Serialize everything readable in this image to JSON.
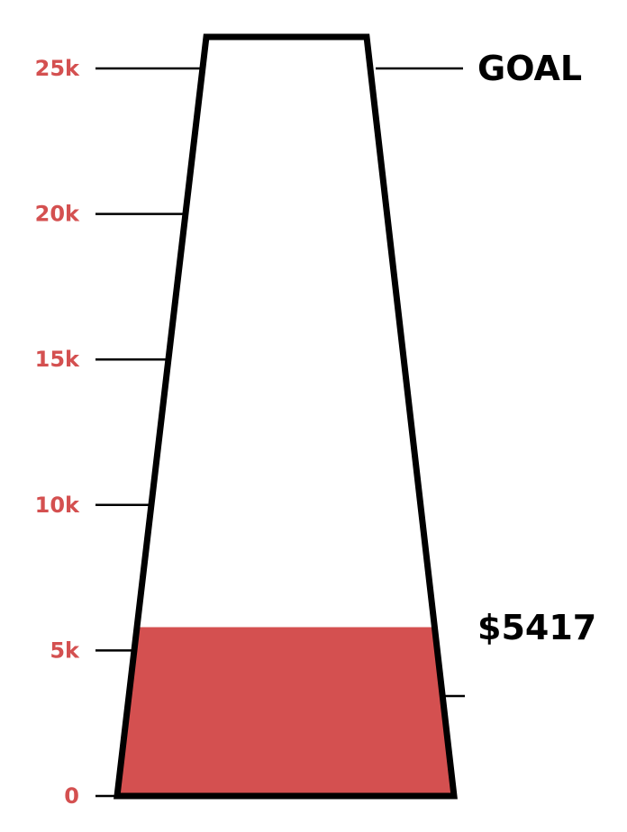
{
  "colors": {
    "fill": "#d45050",
    "tick_label": "#d45050",
    "outline": "#000000",
    "background": "#ffffff"
  },
  "chart_data": {
    "type": "bar",
    "title": "",
    "ylim": [
      0,
      26000
    ],
    "y_ticks": [
      {
        "value": 0,
        "label": "0"
      },
      {
        "value": 5000,
        "label": "5k"
      },
      {
        "value": 10000,
        "label": "10k"
      },
      {
        "value": 15000,
        "label": "15k"
      },
      {
        "value": 20000,
        "label": "20k"
      },
      {
        "value": 25000,
        "label": "25k"
      }
    ],
    "goal": {
      "label": "GOAL",
      "value": 25000
    },
    "current": {
      "label": "$5417",
      "value": 5417
    },
    "fill_level": 5800,
    "grid": false
  }
}
